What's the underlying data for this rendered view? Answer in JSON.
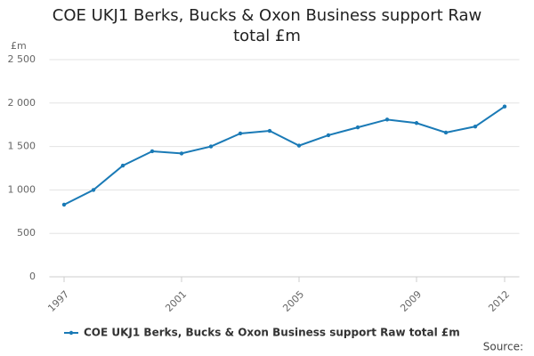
{
  "chart_data": {
    "type": "line",
    "title": "COE UKJ1 Berks, Bucks & Oxon Business support Raw total £m",
    "y_label": "£m",
    "source": "Source:",
    "x": [
      1997,
      1998,
      1999,
      2000,
      2001,
      2002,
      2003,
      2004,
      2005,
      2006,
      2007,
      2008,
      2009,
      2010,
      2011,
      2012
    ],
    "series": [
      {
        "name": "COE UKJ1 Berks, Bucks & Oxon Business support Raw total £m",
        "color": "#1a7ab6",
        "values": [
          830,
          1000,
          1280,
          1445,
          1420,
          1500,
          1650,
          1680,
          1510,
          1630,
          1720,
          1810,
          1770,
          1660,
          1730,
          1960
        ]
      }
    ],
    "xlim": [
      1996.5,
      2012.5
    ],
    "xticks": [
      1997,
      2001,
      2005,
      2009,
      2012
    ],
    "ylim": [
      0,
      2500
    ],
    "yticks": [
      0,
      500,
      {
        "value": 1000,
        "label": "1 000"
      },
      {
        "value": 1500,
        "label": "1 500"
      },
      {
        "value": 2000,
        "label": "2 000"
      },
      {
        "value": 2500,
        "label": "2 500"
      }
    ],
    "grid": true
  }
}
